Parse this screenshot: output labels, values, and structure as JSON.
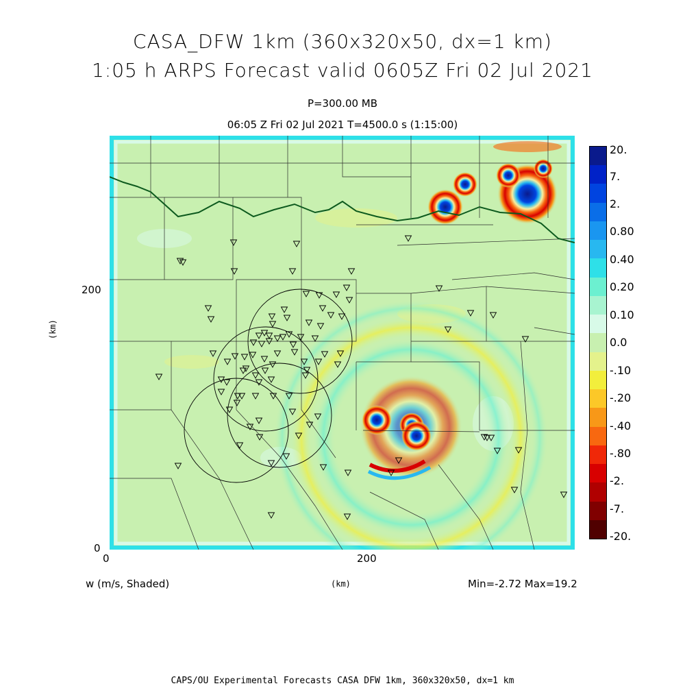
{
  "title": {
    "line1": "CASA_DFW 1km (360x320x50, dx=1 km)",
    "line2": "1:05 h ARPS Forecast valid 0605Z Fri 02 Jul 2021"
  },
  "subtitle": {
    "level": "P=300.00 MB",
    "time": "06:05 Z Fri 02 Jul 2021    T=4500.0 s (1:15:00)"
  },
  "axes": {
    "x_ticks": [
      "0",
      "200"
    ],
    "y_ticks": [
      "0",
      "200"
    ],
    "x_unit": "(km)",
    "y_unit": "(km)"
  },
  "footer": {
    "variable": "w (m/s, Shaded)",
    "minmax": "Min=-2.72  Max=19.2",
    "credit": "CAPS/OU Experimental Forecasts  CASA DFW 1km, 360x320x50, dx=1 km"
  },
  "colorbar": {
    "labels": [
      "20.",
      "7.",
      "2.",
      "0.80",
      "0.40",
      "0.20",
      "0.10",
      "0.0",
      "-.10",
      "-.20",
      "-.40",
      "-.80",
      "-2.",
      "-7.",
      "-20."
    ],
    "colors": [
      "#0a1a8c",
      "#0022c8",
      "#0044e0",
      "#0a6ee8",
      "#1a96f0",
      "#28b8f0",
      "#2ee0e8",
      "#6cf0d0",
      "#a8f4d0",
      "#d8fae8",
      "#c8f0b0",
      "#e4f28c",
      "#f2ee3c",
      "#fcc828",
      "#f89818",
      "#f86810",
      "#f02808",
      "#d80000",
      "#b00000",
      "#800000",
      "#500000"
    ]
  },
  "map_layers": {
    "field": "vertical velocity w",
    "features": [
      "state-border",
      "county-lines",
      "radar-range-rings",
      "station-markers",
      "storm-cells"
    ]
  }
}
